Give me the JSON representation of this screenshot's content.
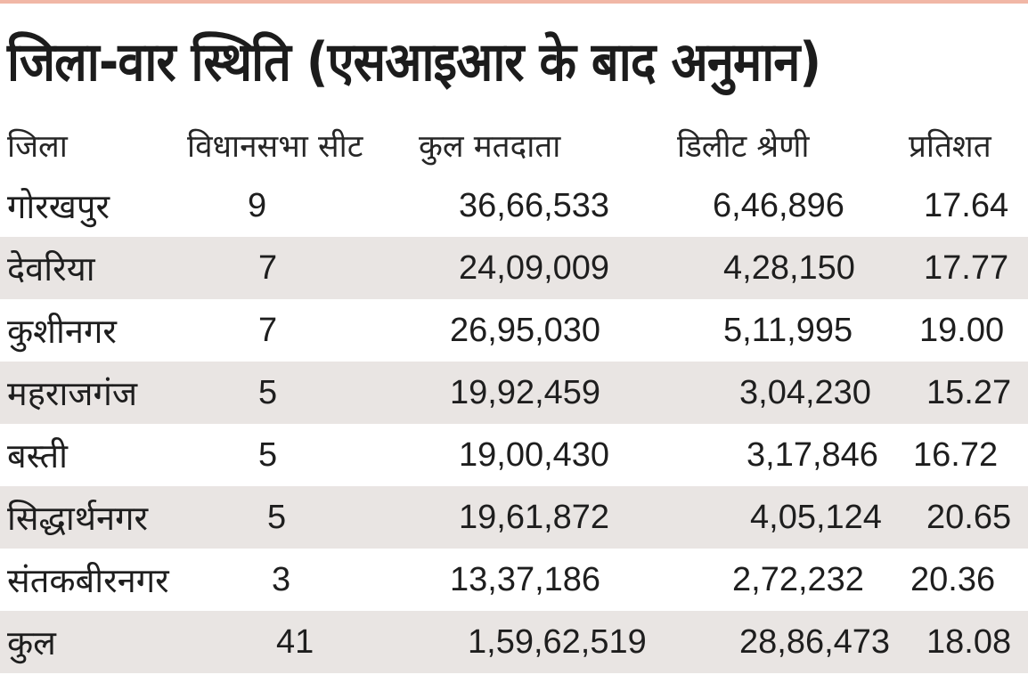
{
  "title": "जिला-वार स्थिति (एसआइआर के बाद अनुमान)",
  "columns": [
    "जिला",
    "विधानसभा सीट",
    "कुल मतदाता",
    "डिलीट श्रेणी",
    "प्रतिशत"
  ],
  "rows": [
    {
      "district": "गोरखपुर",
      "seats": "9",
      "voters": "36,66,533",
      "deleted": "6,46,896",
      "percent": "17.64"
    },
    {
      "district": "देवरिया",
      "seats": "7",
      "voters": "24,09,009",
      "deleted": "4,28,150",
      "percent": "17.77"
    },
    {
      "district": "कुशीनगर",
      "seats": "7",
      "voters": "26,95,030",
      "deleted": "5,11,995",
      "percent": "19.00"
    },
    {
      "district": "महराजगंज",
      "seats": "5",
      "voters": "19,92,459",
      "deleted": "3,04,230",
      "percent": "15.27"
    },
    {
      "district": "बस्ती",
      "seats": "5",
      "voters": "19,00,430",
      "deleted": "3,17,846",
      "percent": "16.72"
    },
    {
      "district": "सिद्धार्थनगर",
      "seats": "5",
      "voters": "19,61,872",
      "deleted": "4,05,124",
      "percent": "20.65"
    },
    {
      "district": "संतकबीरनगर",
      "seats": "3",
      "voters": "13,37,186",
      "deleted": "2,72,232",
      "percent": "20.36"
    },
    {
      "district": "कुल",
      "seats": "41",
      "voters": "1,59,62,519",
      "deleted": "28,86,473",
      "percent": "18.08"
    }
  ],
  "colors": {
    "shade": "#e9e5e3",
    "top_rule": "#f1b7a6",
    "text": "#1e1e1e"
  }
}
